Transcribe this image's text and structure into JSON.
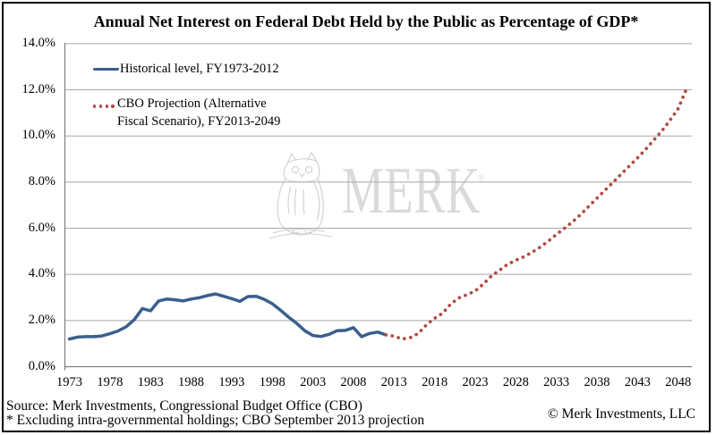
{
  "title": "Annual Net Interest on Federal Debt Held by the Public as Percentage of GDP*",
  "legend": {
    "historical_label": "Historical level, FY1973-2012",
    "projection_label_line1": "CBO Projection (Alternative",
    "projection_label_line2": "Fiscal Scenario), FY2013-2049"
  },
  "watermark": {
    "text": "MERK",
    "registered": "®",
    "owl_icon": "owl-sketch"
  },
  "footer": {
    "source_line": "Source: Merk Investments, Congressional Budget Office (CBO)",
    "note_line": "* Excluding intra-governmental holdings; CBO September 2013 projection",
    "copyright": "© Merk Investments, LLC"
  },
  "colors": {
    "historical": "#3a5f8c",
    "projection": "#b04a43",
    "gridline": "#a8a8a8",
    "axis": "#7f7f7f",
    "watermark": "#dadada"
  },
  "chart_data": {
    "type": "line",
    "title": "Annual Net Interest on Federal Debt Held by the Public as Percentage of GDP*",
    "xlabel": "",
    "ylabel": "",
    "ylim": [
      0,
      14
    ],
    "y_ticks": [
      0,
      2,
      4,
      6,
      8,
      10,
      12,
      14
    ],
    "y_tick_labels": [
      "0.0%",
      "2.0%",
      "4.0%",
      "6.0%",
      "8.0%",
      "10.0%",
      "12.0%",
      "14.0%"
    ],
    "x_ticks": [
      1973,
      1978,
      1983,
      1988,
      1993,
      1998,
      2003,
      2008,
      2013,
      2018,
      2023,
      2028,
      2033,
      2038,
      2043,
      2048
    ],
    "grid": "horizontal",
    "legend_position": "top-left-inside",
    "series": [
      {
        "name": "Historical level, FY1973-2012",
        "style": "solid",
        "color": "#3a5f8c",
        "x_start": 1973,
        "values": [
          1.2,
          1.28,
          1.3,
          1.3,
          1.33,
          1.43,
          1.55,
          1.73,
          2.04,
          2.52,
          2.42,
          2.85,
          2.93,
          2.9,
          2.85,
          2.93,
          2.99,
          3.08,
          3.15,
          3.05,
          2.95,
          2.83,
          3.04,
          3.05,
          2.92,
          2.73,
          2.45,
          2.15,
          1.88,
          1.56,
          1.35,
          1.31,
          1.4,
          1.56,
          1.57,
          1.69,
          1.3,
          1.44,
          1.5,
          1.38
        ]
      },
      {
        "name": "CBO Projection (Alternative Fiscal Scenario), FY2013-2049",
        "style": "dotted",
        "color": "#b04a43",
        "x_start": 2012,
        "values": [
          1.38,
          1.32,
          1.2,
          1.26,
          1.44,
          1.82,
          2.1,
          2.32,
          2.72,
          2.98,
          3.12,
          3.28,
          3.58,
          3.93,
          4.18,
          4.44,
          4.61,
          4.76,
          4.96,
          5.18,
          5.44,
          5.73,
          6.0,
          6.28,
          6.6,
          6.95,
          7.3,
          7.65,
          8.0,
          8.35,
          8.7,
          9.05,
          9.42,
          9.82,
          10.22,
          10.68,
          11.18,
          12.02
        ]
      }
    ]
  }
}
